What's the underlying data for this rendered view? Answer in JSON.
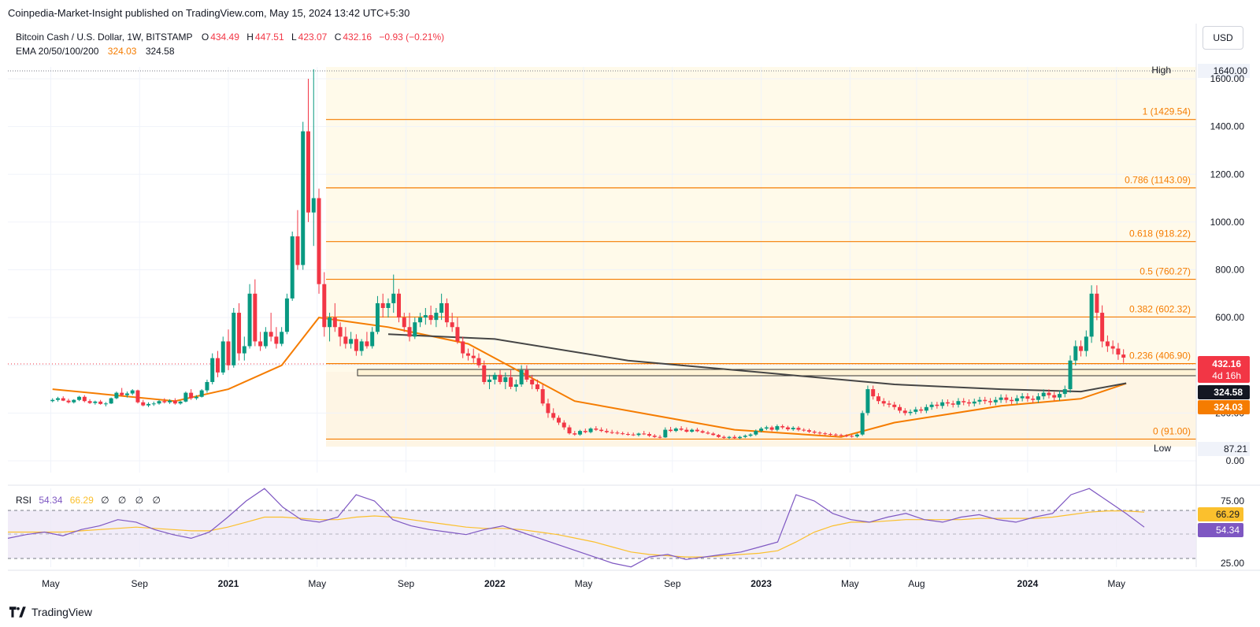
{
  "header": {
    "published": "Coinpedia-Market-Insight published on TradingView.com, May 15, 2024 13:42 UTC+5:30"
  },
  "legend": {
    "symbol": "Bitcoin Cash / U.S. Dollar, 1W, BITSTAMP",
    "open_label": "O",
    "open": "434.49",
    "high_label": "H",
    "high": "447.51",
    "low_label": "L",
    "low": "423.07",
    "close_label": "C",
    "close": "432.16",
    "change": "−0.93 (−0.21%)",
    "ema_label": "EMA 20/50/100/200",
    "ema_a": "324.03",
    "ema_b": "324.58"
  },
  "rsi_legend": {
    "label": "RSI",
    "value": "54.34",
    "ma": "66.29",
    "extra": "∅ ∅ ∅ ∅"
  },
  "currency_button": "USD",
  "brand": "TradingView",
  "colors": {
    "up": "#089981",
    "down": "#f23645",
    "ema_orange": "#f57c00",
    "ema_dark": "#454545",
    "fib": "#f57c00",
    "rsi": "#7e57c2",
    "rsi_ma": "#fbc02d",
    "band": "#ede7f6"
  },
  "chart_data": [
    {
      "type": "candlestick",
      "title": "Bitcoin Cash / U.S. Dollar, 1W, BITSTAMP",
      "y_axis_ticks": [
        "1600.00",
        "1400.00",
        "1200.00",
        "1000.00",
        "800.00",
        "600.00",
        "400.00",
        "200.00",
        "0.00"
      ],
      "ylim": [
        -30,
        1660
      ],
      "x_axis_ticks": [
        "May",
        "Sep",
        "2021",
        "May",
        "Sep",
        "2022",
        "May",
        "Sep",
        "2023",
        "May",
        "Aug",
        "2024",
        "May"
      ],
      "x_axis_tick_dates": [
        "2020-05",
        "2020-09",
        "2021-01",
        "2021-05",
        "2021-09",
        "2022-01",
        "2022-05",
        "2022-09",
        "2023-01",
        "2023-05",
        "2023-08",
        "2024-01",
        "2024-05"
      ],
      "fib_levels": [
        {
          "ratio": "1",
          "price": 1429.54,
          "label": "1 (1429.54)"
        },
        {
          "ratio": "0.786",
          "price": 1143.09,
          "label": "0.786 (1143.09)"
        },
        {
          "ratio": "0.618",
          "price": 918.22,
          "label": "0.618 (918.22)"
        },
        {
          "ratio": "0.5",
          "price": 760.27,
          "label": "0.5 (760.27)"
        },
        {
          "ratio": "0.382",
          "price": 602.32,
          "label": "0.382 (602.32)"
        },
        {
          "ratio": "0.236",
          "price": 406.9,
          "label": "0.236 (406.90)"
        },
        {
          "ratio": "0",
          "price": 91.0,
          "label": "0 (91.00)"
        }
      ],
      "high": {
        "label": "High",
        "price": "1640.00"
      },
      "low": {
        "label": "Low",
        "price": "87.21"
      },
      "price_tags": [
        {
          "value": "432.16",
          "sub": "4d 16h",
          "color": "#f23645"
        },
        {
          "value": "324.58",
          "color": "#131722"
        },
        {
          "value": "324.03",
          "color": "#f57c00"
        }
      ],
      "support_zone": [
        395,
        418
      ],
      "candles_ohlc": [
        [
          2020.34,
          250,
          262,
          245,
          255
        ],
        [
          2020.36,
          255,
          268,
          248,
          262
        ],
        [
          2020.38,
          262,
          270,
          250,
          252
        ],
        [
          2020.4,
          252,
          260,
          240,
          245
        ],
        [
          2020.42,
          245,
          258,
          240,
          255
        ],
        [
          2020.44,
          255,
          272,
          250,
          268
        ],
        [
          2020.46,
          268,
          275,
          245,
          250
        ],
        [
          2020.48,
          250,
          258,
          238,
          242
        ],
        [
          2020.5,
          242,
          252,
          235,
          248
        ],
        [
          2020.52,
          248,
          255,
          235,
          238
        ],
        [
          2020.54,
          238,
          246,
          228,
          240
        ],
        [
          2020.56,
          240,
          265,
          238,
          262
        ],
        [
          2020.58,
          262,
          290,
          258,
          285
        ],
        [
          2020.6,
          285,
          305,
          270,
          275
        ],
        [
          2020.62,
          275,
          290,
          265,
          282
        ],
        [
          2020.64,
          282,
          300,
          275,
          295
        ],
        [
          2020.66,
          295,
          298,
          240,
          245
        ],
        [
          2020.68,
          245,
          255,
          228,
          232
        ],
        [
          2020.7,
          232,
          245,
          225,
          238
        ],
        [
          2020.72,
          238,
          248,
          230,
          240
        ],
        [
          2020.74,
          240,
          255,
          235,
          250
        ],
        [
          2020.76,
          250,
          262,
          240,
          245
        ],
        [
          2020.78,
          245,
          258,
          238,
          252
        ],
        [
          2020.8,
          252,
          262,
          235,
          240
        ],
        [
          2020.82,
          240,
          252,
          235,
          248
        ],
        [
          2020.84,
          248,
          290,
          245,
          285
        ],
        [
          2020.86,
          285,
          300,
          255,
          262
        ],
        [
          2020.88,
          262,
          275,
          255,
          268
        ],
        [
          2020.9,
          268,
          300,
          265,
          295
        ],
        [
          2020.92,
          295,
          340,
          285,
          330
        ],
        [
          2020.94,
          330,
          450,
          320,
          430
        ],
        [
          2020.96,
          430,
          460,
          350,
          370
        ],
        [
          2020.98,
          370,
          520,
          360,
          500
        ],
        [
          2021.0,
          500,
          550,
          380,
          400
        ],
        [
          2021.02,
          400,
          640,
          390,
          620
        ],
        [
          2021.04,
          620,
          660,
          420,
          450
        ],
        [
          2021.06,
          450,
          520,
          420,
          480
        ],
        [
          2021.08,
          480,
          740,
          470,
          700
        ],
        [
          2021.1,
          700,
          760,
          480,
          500
        ],
        [
          2021.12,
          500,
          540,
          460,
          480
        ],
        [
          2021.14,
          480,
          560,
          470,
          540
        ],
        [
          2021.16,
          540,
          620,
          500,
          520
        ],
        [
          2021.18,
          520,
          560,
          470,
          490
        ],
        [
          2021.2,
          490,
          560,
          480,
          540
        ],
        [
          2021.22,
          540,
          700,
          530,
          680
        ],
        [
          2021.24,
          680,
          960,
          670,
          940
        ],
        [
          2021.26,
          940,
          1050,
          800,
          820
        ],
        [
          2021.28,
          820,
          1420,
          800,
          1380
        ],
        [
          2021.3,
          1380,
          1600,
          1000,
          1040
        ],
        [
          2021.32,
          1040,
          1640,
          900,
          1100
        ],
        [
          2021.34,
          1100,
          1140,
          700,
          740
        ],
        [
          2021.36,
          740,
          790,
          520,
          560
        ],
        [
          2021.38,
          560,
          620,
          500,
          600
        ],
        [
          2021.4,
          600,
          660,
          540,
          560
        ],
        [
          2021.42,
          560,
          580,
          480,
          520
        ],
        [
          2021.44,
          520,
          560,
          470,
          490
        ],
        [
          2021.46,
          490,
          540,
          470,
          510
        ],
        [
          2021.48,
          510,
          530,
          440,
          460
        ],
        [
          2021.5,
          460,
          510,
          440,
          500
        ],
        [
          2021.52,
          500,
          540,
          470,
          480
        ],
        [
          2021.54,
          480,
          560,
          470,
          540
        ],
        [
          2021.56,
          540,
          690,
          530,
          660
        ],
        [
          2021.58,
          660,
          700,
          600,
          640
        ],
        [
          2021.6,
          640,
          680,
          600,
          660
        ],
        [
          2021.62,
          660,
          780,
          620,
          700
        ],
        [
          2021.64,
          700,
          720,
          580,
          600
        ],
        [
          2021.66,
          600,
          620,
          540,
          560
        ],
        [
          2021.68,
          560,
          620,
          500,
          520
        ],
        [
          2021.7,
          520,
          600,
          510,
          580
        ],
        [
          2021.72,
          580,
          620,
          560,
          600
        ],
        [
          2021.74,
          600,
          640,
          570,
          610
        ],
        [
          2021.76,
          610,
          650,
          570,
          590
        ],
        [
          2021.78,
          590,
          640,
          560,
          620
        ],
        [
          2021.8,
          620,
          700,
          590,
          660
        ],
        [
          2021.82,
          660,
          680,
          560,
          580
        ],
        [
          2021.84,
          580,
          620,
          540,
          560
        ],
        [
          2021.86,
          560,
          600,
          490,
          500
        ],
        [
          2021.88,
          500,
          520,
          430,
          450
        ],
        [
          2021.9,
          450,
          470,
          420,
          440
        ],
        [
          2021.92,
          440,
          470,
          410,
          430
        ],
        [
          2021.94,
          430,
          450,
          390,
          400
        ],
        [
          2021.96,
          400,
          420,
          320,
          330
        ],
        [
          2021.98,
          330,
          360,
          300,
          340
        ],
        [
          2022.0,
          340,
          370,
          320,
          360
        ],
        [
          2022.02,
          360,
          380,
          320,
          330
        ],
        [
          2022.04,
          330,
          370,
          300,
          350
        ],
        [
          2022.06,
          350,
          380,
          300,
          310
        ],
        [
          2022.08,
          310,
          340,
          290,
          320
        ],
        [
          2022.1,
          320,
          400,
          310,
          380
        ],
        [
          2022.12,
          380,
          400,
          330,
          340
        ],
        [
          2022.14,
          340,
          360,
          300,
          320
        ],
        [
          2022.16,
          320,
          340,
          290,
          300
        ],
        [
          2022.18,
          300,
          320,
          230,
          240
        ],
        [
          2022.2,
          240,
          260,
          180,
          200
        ],
        [
          2022.22,
          200,
          220,
          170,
          180
        ],
        [
          2022.24,
          180,
          190,
          150,
          160
        ],
        [
          2022.26,
          160,
          170,
          130,
          140
        ],
        [
          2022.28,
          140,
          150,
          110,
          115
        ],
        [
          2022.3,
          115,
          125,
          105,
          110
        ],
        [
          2022.32,
          110,
          130,
          105,
          125
        ],
        [
          2022.34,
          125,
          135,
          115,
          120
        ],
        [
          2022.36,
          120,
          140,
          115,
          135
        ],
        [
          2022.38,
          135,
          145,
          125,
          130
        ],
        [
          2022.4,
          130,
          140,
          120,
          125
        ],
        [
          2022.42,
          125,
          135,
          115,
          120
        ],
        [
          2022.44,
          120,
          130,
          112,
          118
        ],
        [
          2022.46,
          118,
          126,
          110,
          115
        ],
        [
          2022.48,
          115,
          122,
          108,
          112
        ],
        [
          2022.5,
          112,
          120,
          105,
          110
        ],
        [
          2022.52,
          110,
          118,
          104,
          108
        ],
        [
          2022.54,
          108,
          118,
          102,
          114
        ],
        [
          2022.56,
          114,
          125,
          108,
          112
        ],
        [
          2022.58,
          112,
          120,
          100,
          105
        ],
        [
          2022.6,
          105,
          112,
          96,
          100
        ],
        [
          2022.62,
          100,
          108,
          94,
          98
        ],
        [
          2022.64,
          98,
          140,
          96,
          130
        ],
        [
          2022.66,
          130,
          142,
          120,
          125
        ],
        [
          2022.68,
          125,
          140,
          120,
          135
        ],
        [
          2022.7,
          135,
          145,
          125,
          130
        ],
        [
          2022.72,
          130,
          140,
          118,
          122
        ],
        [
          2022.74,
          122,
          135,
          118,
          130
        ],
        [
          2022.76,
          130,
          138,
          120,
          124
        ],
        [
          2022.78,
          124,
          130,
          115,
          118
        ],
        [
          2022.8,
          118,
          125,
          110,
          114
        ],
        [
          2022.82,
          114,
          120,
          105,
          108
        ],
        [
          2022.84,
          108,
          112,
          96,
          100
        ],
        [
          2022.86,
          100,
          106,
          92,
          96
        ],
        [
          2022.88,
          96,
          104,
          90,
          100
        ],
        [
          2022.9,
          100,
          108,
          92,
          95
        ]
      ],
      "ema_orange_points": [
        [
          2020.34,
          300
        ],
        [
          2020.8,
          250
        ],
        [
          2021.0,
          300
        ],
        [
          2021.2,
          400
        ],
        [
          2021.34,
          600
        ],
        [
          2021.6,
          560
        ],
        [
          2021.9,
          490
        ],
        [
          2022.3,
          250
        ],
        [
          2022.9,
          130
        ],
        [
          2023.3,
          100
        ],
        [
          2023.5,
          160
        ],
        [
          2023.9,
          230
        ],
        [
          2024.2,
          260
        ],
        [
          2024.37,
          324
        ]
      ],
      "ema_dark_points": [
        [
          2021.6,
          530
        ],
        [
          2022.0,
          510
        ],
        [
          2022.5,
          420
        ],
        [
          2023.0,
          370
        ],
        [
          2023.5,
          320
        ],
        [
          2023.9,
          300
        ],
        [
          2024.2,
          290
        ],
        [
          2024.37,
          325
        ]
      ]
    },
    {
      "type": "line",
      "title": "RSI",
      "y_axis_ticks": [
        "75.00",
        "25.00"
      ],
      "upper_band": 70,
      "lower_band": 30,
      "series": [
        {
          "name": "RSI",
          "values_sampled": [
            45,
            48,
            50,
            47,
            52,
            55,
            60,
            58,
            52,
            48,
            45,
            50,
            62,
            75,
            85,
            70,
            60,
            58,
            62,
            80,
            75,
            60,
            55,
            52,
            50,
            48,
            52,
            55,
            50,
            45,
            40,
            35,
            30,
            25,
            22,
            30,
            32,
            28,
            30,
            32,
            34,
            38,
            42,
            80,
            75,
            65,
            60,
            58,
            62,
            65,
            60,
            58,
            62,
            64,
            60,
            58,
            62,
            65,
            80,
            85,
            75,
            65,
            54
          ]
        },
        {
          "name": "RSI MA",
          "values_sampled": [
            50,
            50,
            50,
            50,
            51,
            52,
            53,
            54,
            53,
            52,
            51,
            51,
            54,
            58,
            62,
            62,
            61,
            60,
            60,
            62,
            63,
            62,
            60,
            58,
            56,
            54,
            53,
            53,
            52,
            50,
            48,
            45,
            42,
            38,
            34,
            32,
            31,
            30,
            30,
            31,
            32,
            33,
            35,
            42,
            50,
            55,
            58,
            58,
            59,
            60,
            60,
            60,
            60,
            61,
            61,
            61,
            61,
            62,
            64,
            66,
            67,
            67,
            66
          ]
        }
      ]
    }
  ]
}
